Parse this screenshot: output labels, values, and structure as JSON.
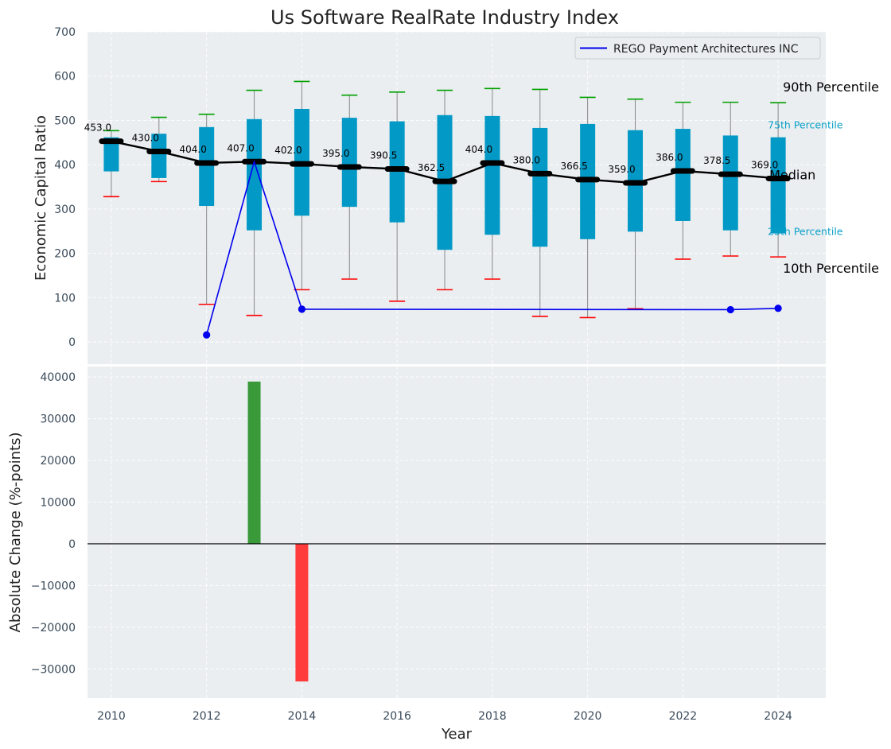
{
  "title": "Us Software RealRate Industry Index",
  "colors": {
    "panel_bg": "#eaeef0",
    "box": "#0399c6",
    "median_line": "#000000",
    "whisker": "#888888",
    "cap_high": "#00a000",
    "cap_low": "#ff0000",
    "company_line": "#0000ee",
    "bar_positive": "#3a9a3a",
    "bar_negative": "#ff3b3b"
  },
  "chart_data": [
    {
      "type": "box",
      "name": "top-panel",
      "ylabel": "Economic Capital Ratio",
      "ylim": [
        -50,
        700
      ],
      "yticks": [
        0,
        100,
        200,
        300,
        400,
        500,
        600,
        700
      ],
      "xlim": [
        2009.5,
        2025
      ],
      "grid": true,
      "legend": {
        "position": "top-right",
        "entries": [
          "REGO Payment Architectures INC"
        ]
      },
      "years": [
        2010,
        2011,
        2012,
        2013,
        2014,
        2015,
        2016,
        2017,
        2018,
        2019,
        2020,
        2021,
        2022,
        2023,
        2024
      ],
      "p10": [
        328,
        362,
        85,
        60,
        118,
        142,
        92,
        118,
        142,
        58,
        55,
        75,
        187,
        194,
        192
      ],
      "q1": [
        385,
        370,
        307,
        252,
        285,
        305,
        270,
        208,
        242,
        215,
        232,
        249,
        273,
        252,
        245
      ],
      "median": [
        453.0,
        430.0,
        404.0,
        407.0,
        402.0,
        395.0,
        390.5,
        362.5,
        404.0,
        380.0,
        366.5,
        359.0,
        386.0,
        378.5,
        369.0
      ],
      "median_labels": [
        "453.0",
        "430.0",
        "404.0",
        "407.0",
        "402.0",
        "395.0",
        "390.5",
        "362.5",
        "404.0",
        "380.0",
        "366.5",
        "359.0",
        "386.0",
        "378.5",
        "369.0"
      ],
      "q3": [
        462,
        470,
        485,
        503,
        526,
        506,
        498,
        512,
        510,
        483,
        492,
        478,
        481,
        466,
        462
      ],
      "p90": [
        477,
        507,
        514,
        568,
        588,
        557,
        564,
        568,
        572,
        570,
        552,
        548,
        541,
        541,
        540
      ],
      "percentile_labels": {
        "p90": "90th Percentile",
        "q3": "75th Percentile",
        "median": "Median",
        "q1": "25th Percentile",
        "p10": "10th Percentile"
      },
      "company_series": {
        "name": "REGO Payment Architectures INC",
        "x": [
          2012,
          2013,
          2014,
          2023,
          2024
        ],
        "y": [
          16,
          407,
          74,
          73,
          76
        ],
        "markers_at": [
          2012,
          2014,
          2023,
          2024
        ]
      }
    },
    {
      "type": "bar",
      "name": "bottom-panel",
      "xlabel": "Year",
      "ylabel": "Absolute Change (%-points)",
      "ylim": [
        -37000,
        42500
      ],
      "yticks": [
        -30000,
        -20000,
        -10000,
        0,
        10000,
        20000,
        30000,
        40000
      ],
      "ytick_labels": [
        "−30000",
        "−20000",
        "−10000",
        "0",
        "10000",
        "20000",
        "30000",
        "40000"
      ],
      "xticks": [
        2010,
        2012,
        2014,
        2016,
        2018,
        2020,
        2022,
        2024
      ],
      "xlim": [
        2009.5,
        2025
      ],
      "grid": true,
      "x": [
        2013,
        2014
      ],
      "values": [
        38900,
        -33000
      ]
    }
  ]
}
